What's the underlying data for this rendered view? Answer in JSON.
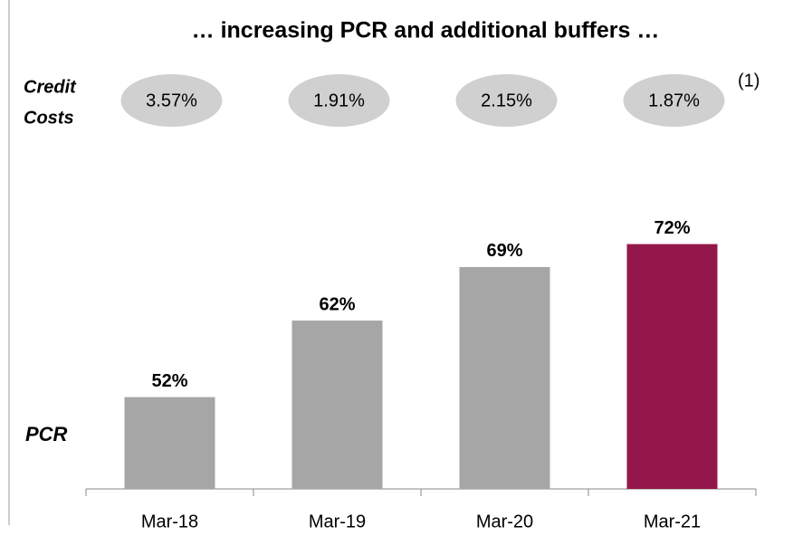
{
  "chart_data": {
    "type": "bar",
    "title": "… increasing PCR and additional buffers …",
    "y_label": "PCR",
    "categories": [
      "Mar-18",
      "Mar-19",
      "Mar-20",
      "Mar-21"
    ],
    "values": [
      52,
      62,
      69,
      72
    ],
    "value_labels": [
      "52%",
      "62%",
      "69%",
      "72%"
    ],
    "colors": [
      "#a6a6a6",
      "#a6a6a6",
      "#a6a6a6",
      "#93174a"
    ],
    "ylim": [
      40,
      100
    ],
    "credit_costs": {
      "label": [
        "Credit",
        "Costs"
      ],
      "values": [
        3.57,
        1.91,
        2.15,
        1.87
      ],
      "value_labels": [
        "3.57%",
        "1.91%",
        "2.15%",
        "1.87%"
      ],
      "note": "(1)",
      "color": "#d0d0d0"
    }
  }
}
